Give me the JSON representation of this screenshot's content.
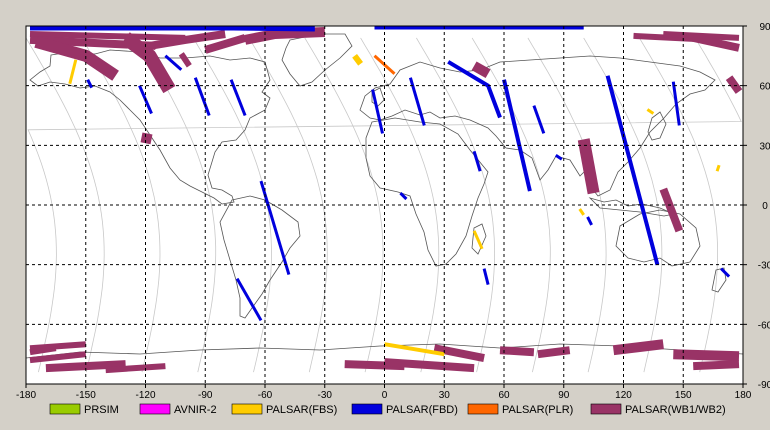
{
  "axes": {
    "x_ticks": [
      "-180",
      "-150",
      "-120",
      "-90",
      "-60",
      "-30",
      "0",
      "30",
      "60",
      "90",
      "120",
      "150",
      "180"
    ],
    "y_ticks": [
      "90",
      "60",
      "30",
      "0",
      "-30",
      "-60",
      "-90"
    ],
    "xlim": [
      -180,
      180
    ],
    "ylim": [
      -90,
      90
    ],
    "grid": "dashed"
  },
  "colors": {
    "ocean": "#ffffff",
    "land_outline": "#555555",
    "orbit_tracks": "#c8c8c8",
    "grid": "#000000",
    "frame_bg": "#d4d0c8"
  },
  "legend": [
    {
      "label": "PRSIM",
      "color": "#99cc00"
    },
    {
      "label": "AVNIR-2",
      "color": "#ff00ff"
    },
    {
      "label": "PALSAR(FBS)",
      "color": "#ffcc00"
    },
    {
      "label": "PALSAR(FBD)",
      "color": "#0000dd"
    },
    {
      "label": "PALSAR(PLR)",
      "color": "#ff6600"
    },
    {
      "label": "PALSAR(WB1/WB2)",
      "color": "#993366"
    }
  ],
  "map_data": {
    "type": "satellite-coverage-map",
    "projection": "equirectangular",
    "swaths": [
      {
        "mode": "PALSAR(WB1/WB2)",
        "path": [
          [
            -178,
            86
          ],
          [
            -100,
            84
          ]
        ],
        "w": 3
      },
      {
        "mode": "PALSAR(WB1/WB2)",
        "path": [
          [
            -178,
            83
          ],
          [
            -115,
            80
          ]
        ],
        "w": 4
      },
      {
        "mode": "PALSAR(WB1/WB2)",
        "path": [
          [
            -175,
            82
          ],
          [
            -150,
            75
          ],
          [
            -135,
            65
          ]
        ],
        "w": 6
      },
      {
        "mode": "PALSAR(WB1/WB2)",
        "path": [
          [
            -130,
            84
          ],
          [
            -118,
            75
          ],
          [
            -108,
            58
          ]
        ],
        "w": 7
      },
      {
        "mode": "PALSAR(WB1/WB2)",
        "path": [
          [
            -118,
            80
          ],
          [
            -100,
            83
          ],
          [
            -80,
            86
          ]
        ],
        "w": 4
      },
      {
        "mode": "PALSAR(WB1/WB2)",
        "path": [
          [
            -70,
            83
          ],
          [
            -55,
            86
          ],
          [
            -30,
            87
          ]
        ],
        "w": 5
      },
      {
        "mode": "PALSAR(WB1/WB2)",
        "path": [
          [
            -90,
            78
          ],
          [
            -70,
            84
          ]
        ],
        "w": 4
      },
      {
        "mode": "PALSAR(WB1/WB2)",
        "path": [
          [
            -122,
            34
          ],
          [
            -117,
            33
          ]
        ],
        "w": 5
      },
      {
        "mode": "PALSAR(WB1/WB2)",
        "path": [
          [
            -102,
            76
          ],
          [
            -98,
            70
          ]
        ],
        "w": 3
      },
      {
        "mode": "PALSAR(WB1/WB2)",
        "path": [
          [
            45,
            70
          ],
          [
            52,
            66
          ]
        ],
        "w": 5
      },
      {
        "mode": "PALSAR(WB1/WB2)",
        "path": [
          [
            100,
            33
          ],
          [
            105,
            6
          ]
        ],
        "w": 6
      },
      {
        "mode": "PALSAR(WB1/WB2)",
        "path": [
          [
            140,
            8
          ],
          [
            148,
            -13
          ]
        ],
        "w": 4
      },
      {
        "mode": "PALSAR(WB1/WB2)",
        "path": [
          [
            125,
            85
          ],
          [
            165,
            83
          ]
        ],
        "w": 3
      },
      {
        "mode": "PALSAR(WB1/WB2)",
        "path": [
          [
            140,
            86
          ],
          [
            178,
            84
          ]
        ],
        "w": 3
      },
      {
        "mode": "PALSAR(WB1/WB2)",
        "path": [
          [
            155,
            84
          ],
          [
            178,
            79
          ]
        ],
        "w": 4
      },
      {
        "mode": "PALSAR(WB1/WB2)",
        "path": [
          [
            173,
            64
          ],
          [
            178,
            57
          ]
        ],
        "w": 4
      },
      {
        "mode": "PALSAR(WB1/WB2)",
        "path": [
          [
            -178,
            -74
          ],
          [
            -165,
            -72
          ]
        ],
        "w": 3
      },
      {
        "mode": "PALSAR(WB1/WB2)",
        "path": [
          [
            -178,
            -78
          ],
          [
            -150,
            -75
          ]
        ],
        "w": 3
      },
      {
        "mode": "PALSAR(WB1/WB2)",
        "path": [
          [
            -170,
            -82
          ],
          [
            -130,
            -80
          ]
        ],
        "w": 4
      },
      {
        "mode": "PALSAR(WB1/WB2)",
        "path": [
          [
            -140,
            -83
          ],
          [
            -110,
            -81
          ]
        ],
        "w": 3
      },
      {
        "mode": "PALSAR(WB1/WB2)",
        "path": [
          [
            -20,
            -80
          ],
          [
            10,
            -81
          ]
        ],
        "w": 4
      },
      {
        "mode": "PALSAR(WB1/WB2)",
        "path": [
          [
            0,
            -79
          ],
          [
            45,
            -82
          ]
        ],
        "w": 4
      },
      {
        "mode": "PALSAR(WB1/WB2)",
        "path": [
          [
            25,
            -72
          ],
          [
            50,
            -77
          ]
        ],
        "w": 4
      },
      {
        "mode": "PALSAR(WB1/WB2)",
        "path": [
          [
            58,
            -73
          ],
          [
            75,
            -74
          ]
        ],
        "w": 4
      },
      {
        "mode": "PALSAR(WB1/WB2)",
        "path": [
          [
            77,
            -75
          ],
          [
            93,
            -73
          ]
        ],
        "w": 4
      },
      {
        "mode": "PALSAR(WB1/WB2)",
        "path": [
          [
            115,
            -73
          ],
          [
            140,
            -70
          ]
        ],
        "w": 5
      },
      {
        "mode": "PALSAR(WB1/WB2)",
        "path": [
          [
            145,
            -75
          ],
          [
            178,
            -76
          ]
        ],
        "w": 5
      },
      {
        "mode": "PALSAR(WB1/WB2)",
        "path": [
          [
            155,
            -81
          ],
          [
            178,
            -80
          ]
        ],
        "w": 4
      },
      {
        "mode": "PALSAR(WB1/WB2)",
        "path": [
          [
            -178,
            -72
          ],
          [
            -150,
            -70
          ]
        ],
        "w": 3
      },
      {
        "mode": "PALSAR(FBS)",
        "path": [
          [
            -155,
            73
          ],
          [
            -158,
            61
          ]
        ],
        "w": 1.5
      },
      {
        "mode": "PALSAR(FBS)",
        "path": [
          [
            -15,
            75
          ],
          [
            -12,
            71
          ]
        ],
        "w": 3
      },
      {
        "mode": "PALSAR(FBS)",
        "path": [
          [
            45,
            -13
          ],
          [
            49,
            -22
          ]
        ],
        "w": 1.5
      },
      {
        "mode": "PALSAR(FBS)",
        "path": [
          [
            132,
            48
          ],
          [
            135,
            46
          ]
        ],
        "w": 1.5
      },
      {
        "mode": "PALSAR(FBS)",
        "path": [
          [
            168,
            20
          ],
          [
            167,
            17
          ]
        ],
        "w": 1.5
      },
      {
        "mode": "PALSAR(FBS)",
        "path": [
          [
            0,
            -70
          ],
          [
            30,
            -75
          ]
        ],
        "w": 2
      },
      {
        "mode": "PALSAR(FBS)",
        "path": [
          [
            98,
            -2
          ],
          [
            100,
            -5
          ]
        ],
        "w": 1.5
      },
      {
        "mode": "PALSAR(PLR)",
        "path": [
          [
            -5,
            75
          ],
          [
            5,
            66
          ]
        ],
        "w": 1.5
      },
      {
        "mode": "PALSAR(FBD)",
        "path": [
          [
            -178,
            89
          ],
          [
            -35,
            89
          ]
        ],
        "w": 2.5
      },
      {
        "mode": "PALSAR(FBD)",
        "path": [
          [
            -120,
            89
          ],
          [
            -35,
            88
          ]
        ],
        "w": 1.5
      },
      {
        "mode": "PALSAR(FBD)",
        "path": [
          [
            -5,
            89
          ],
          [
            100,
            89
          ]
        ],
        "w": 1.5
      },
      {
        "mode": "PALSAR(FBD)",
        "path": [
          [
            -110,
            75
          ],
          [
            -102,
            68
          ]
        ],
        "w": 1.5
      },
      {
        "mode": "PALSAR(FBD)",
        "path": [
          [
            -149,
            63
          ],
          [
            -147,
            59
          ]
        ],
        "w": 1.5
      },
      {
        "mode": "PALSAR(FBD)",
        "path": [
          [
            -123,
            60
          ],
          [
            -117,
            46
          ]
        ],
        "w": 1.5
      },
      {
        "mode": "PALSAR(FBD)",
        "path": [
          [
            -95,
            64
          ],
          [
            -88,
            45
          ]
        ],
        "w": 1.5
      },
      {
        "mode": "PALSAR(FBD)",
        "path": [
          [
            -77,
            63
          ],
          [
            -70,
            45
          ]
        ],
        "w": 1.5
      },
      {
        "mode": "PALSAR(FBD)",
        "path": [
          [
            -62,
            12
          ],
          [
            -48,
            -35
          ]
        ],
        "w": 1.5
      },
      {
        "mode": "PALSAR(FBD)",
        "path": [
          [
            -74,
            -37
          ],
          [
            -62,
            -58
          ]
        ],
        "w": 1.5
      },
      {
        "mode": "PALSAR(FBD)",
        "path": [
          [
            -6,
            58
          ],
          [
            -1,
            36
          ]
        ],
        "w": 1.5
      },
      {
        "mode": "PALSAR(FBD)",
        "path": [
          [
            13,
            64
          ],
          [
            20,
            40
          ]
        ],
        "w": 1.5
      },
      {
        "mode": "PALSAR(FBD)",
        "path": [
          [
            32,
            72
          ],
          [
            52,
            60
          ],
          [
            58,
            44
          ]
        ],
        "w": 2
      },
      {
        "mode": "PALSAR(FBD)",
        "path": [
          [
            45,
            27
          ],
          [
            48,
            17
          ]
        ],
        "w": 1.5
      },
      {
        "mode": "PALSAR(FBD)",
        "path": [
          [
            60,
            63
          ],
          [
            73,
            7
          ]
        ],
        "w": 2
      },
      {
        "mode": "PALSAR(FBD)",
        "path": [
          [
            75,
            50
          ],
          [
            80,
            36
          ]
        ],
        "w": 1.5
      },
      {
        "mode": "PALSAR(FBD)",
        "path": [
          [
            112,
            65
          ],
          [
            137,
            -30
          ]
        ],
        "w": 2
      },
      {
        "mode": "PALSAR(FBD)",
        "path": [
          [
            145,
            62
          ],
          [
            148,
            40
          ]
        ],
        "w": 1.5
      },
      {
        "mode": "PALSAR(FBD)",
        "path": [
          [
            169,
            -32
          ],
          [
            173,
            -36
          ]
        ],
        "w": 1.5
      },
      {
        "mode": "PALSAR(FBD)",
        "path": [
          [
            8,
            6
          ],
          [
            11,
            3
          ]
        ],
        "w": 1.5
      },
      {
        "mode": "PALSAR(FBD)",
        "path": [
          [
            50,
            -32
          ],
          [
            52,
            -40
          ]
        ],
        "w": 1.5
      },
      {
        "mode": "PALSAR(FBD)",
        "path": [
          [
            86,
            25
          ],
          [
            89,
            23
          ]
        ],
        "w": 1.5
      },
      {
        "mode": "PALSAR(FBD)",
        "path": [
          [
            102,
            -6
          ],
          [
            104,
            -10
          ]
        ],
        "w": 1.5
      }
    ]
  }
}
